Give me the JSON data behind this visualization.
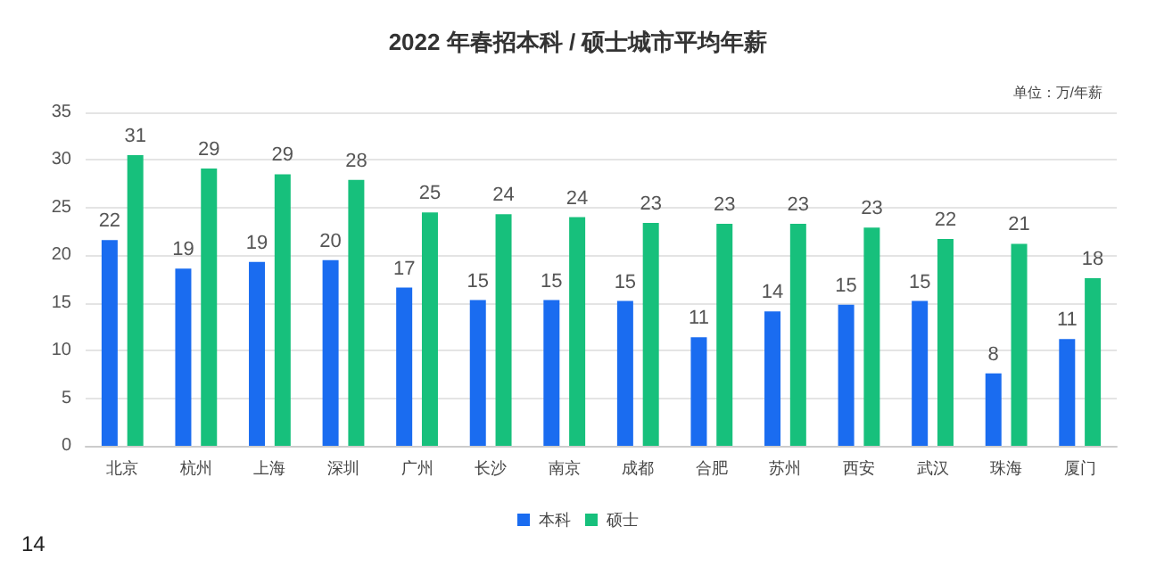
{
  "chart_data": {
    "type": "bar",
    "title": "2022 年春招本科 / 硕士城市平均年薪",
    "annotations": [
      "单位：万/年薪",
      "14"
    ],
    "categories": [
      "北京",
      "杭州",
      "上海",
      "深圳",
      "广州",
      "长沙",
      "南京",
      "成都",
      "合肥",
      "苏州",
      "西安",
      "武汉",
      "珠海",
      "厦门"
    ],
    "series": [
      {
        "name": "本科",
        "color": "#1a6cf0",
        "values": [
          21.6,
          18.6,
          19.3,
          19.5,
          16.6,
          15.3,
          15.3,
          15.2,
          11.4,
          14.1,
          14.8,
          15.2,
          7.6,
          11.2
        ],
        "value_labels": [
          "22",
          "19",
          "19",
          "20",
          "17",
          "15",
          "15",
          "15",
          "11",
          "14",
          "15",
          "15",
          "8",
          "11"
        ]
      },
      {
        "name": "硕士",
        "color": "#17c07c",
        "values": [
          30.5,
          29.1,
          28.5,
          27.9,
          24.5,
          24.3,
          24,
          23.4,
          23.3,
          23.3,
          22.9,
          21.7,
          21.2,
          17.6
        ],
        "value_labels": [
          "31",
          "29",
          "29",
          "28",
          "25",
          "24",
          "24",
          "23",
          "23",
          "23",
          "23",
          "22",
          "21",
          "18"
        ]
      }
    ],
    "ylim": [
      0,
      35
    ],
    "yticks": [
      0,
      5,
      10,
      15,
      20,
      25,
      30,
      35
    ],
    "grid": "y",
    "legend": "bottom"
  }
}
